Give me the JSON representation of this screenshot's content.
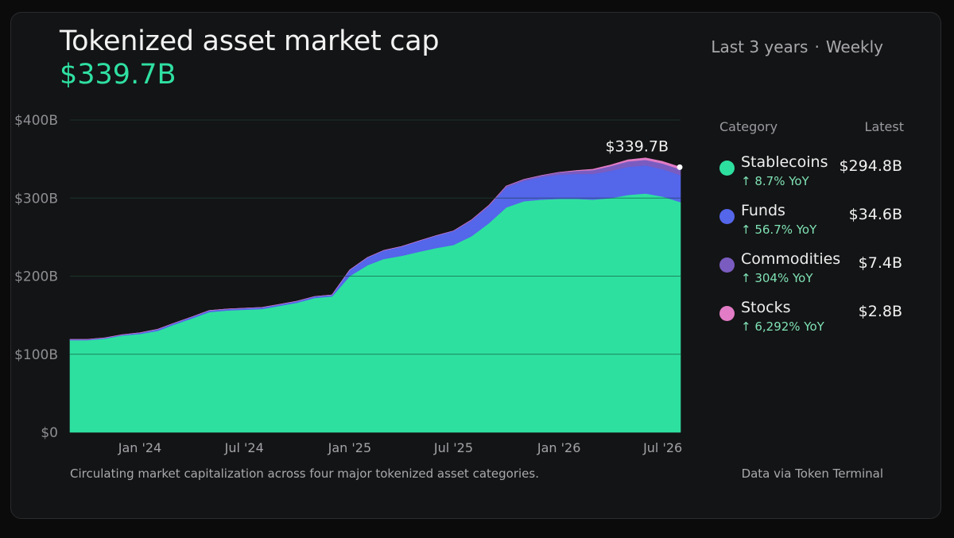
{
  "header": {
    "title": "Tokenized asset market cap",
    "total_value": "$339.7B",
    "range_label": "Last 3 years",
    "separator": "·",
    "interval_label": "Weekly"
  },
  "legend": {
    "category_header": "Category",
    "latest_header": "Latest",
    "items": [
      {
        "name": "Stablecoins",
        "yoy": "↑ 8.7% YoY",
        "value": "$294.8B",
        "color": "#2ee0a0"
      },
      {
        "name": "Funds",
        "yoy": "↑ 56.7% YoY",
        "value": "$34.6B",
        "color": "#5466ea"
      },
      {
        "name": "Commodities",
        "yoy": "↑ 304% YoY",
        "value": "$7.4B",
        "color": "#7a5cc0"
      },
      {
        "name": "Stocks",
        "yoy": "↑ 6,292% YoY",
        "value": "$2.8B",
        "color": "#e27cc6"
      }
    ]
  },
  "footer": {
    "caption": "Circulating market capitalization across four major tokenized asset categories.",
    "source": "Data via Token Terminal"
  },
  "chart_data": {
    "type": "area",
    "stacked": true,
    "x": [
      "2023-09-01",
      "2023-10-01",
      "2023-11-01",
      "2023-12-01",
      "2024-01-01",
      "2024-02-01",
      "2024-03-01",
      "2024-04-01",
      "2024-05-01",
      "2024-06-01",
      "2024-07-01",
      "2024-08-01",
      "2024-09-01",
      "2024-10-01",
      "2024-11-01",
      "2024-12-01",
      "2025-01-01",
      "2025-02-01",
      "2025-03-01",
      "2025-04-01",
      "2025-05-01",
      "2025-06-01",
      "2025-07-01",
      "2025-08-01",
      "2025-09-01",
      "2025-10-01",
      "2025-11-01",
      "2025-12-01",
      "2026-01-01",
      "2026-02-01",
      "2026-03-01",
      "2026-04-01",
      "2026-05-01",
      "2026-06-01",
      "2026-07-01",
      "2026-08-01"
    ],
    "series": [
      {
        "name": "Stablecoins",
        "values": [
          118,
          118,
          120,
          124,
          126,
          130,
          138,
          146,
          154,
          156,
          157,
          158,
          162,
          166,
          172,
          174,
          200,
          214,
          222,
          226,
          231,
          236,
          240,
          251,
          268,
          288,
          296,
          298,
          299,
          299,
          298,
          300,
          304,
          306,
          302,
          294.8
        ]
      },
      {
        "name": "Funds",
        "values": [
          1,
          1,
          1,
          1,
          1.5,
          2,
          2,
          2,
          2,
          2,
          2,
          2,
          2,
          2,
          2,
          2,
          8,
          10,
          11,
          12,
          14,
          16,
          18,
          20,
          22,
          26,
          26,
          29,
          31,
          32,
          33,
          35,
          36,
          36,
          35,
          34.6
        ]
      },
      {
        "name": "Commodities",
        "values": [
          0,
          0,
          0,
          0,
          0,
          0,
          0,
          0,
          0,
          0,
          0,
          0,
          0,
          0,
          0,
          0,
          0,
          0,
          0,
          0,
          0,
          0,
          0,
          1,
          1,
          1.5,
          2,
          2,
          3,
          4,
          5,
          6,
          7,
          7,
          7.3,
          7.4
        ]
      },
      {
        "name": "Stocks",
        "values": [
          0,
          0,
          0,
          0,
          0,
          0,
          0,
          0,
          0,
          0,
          0,
          0,
          0,
          0,
          0,
          0,
          0,
          0,
          0,
          0,
          0,
          0,
          0,
          0,
          0,
          0,
          0,
          0,
          0,
          0.5,
          1,
          1.5,
          2,
          2.5,
          2.7,
          2.8
        ]
      }
    ],
    "x_ticks": [
      "Jan '24",
      "Jul '24",
      "Jan '25",
      "Jul '25",
      "Jan '26",
      "Jul '26"
    ],
    "y_ticks": [
      "$0",
      "$100B",
      "$200B",
      "$300B",
      "$400B"
    ],
    "ylim": [
      0,
      400
    ],
    "annotation": "$339.7B",
    "grid": true,
    "legend_position": "right"
  }
}
